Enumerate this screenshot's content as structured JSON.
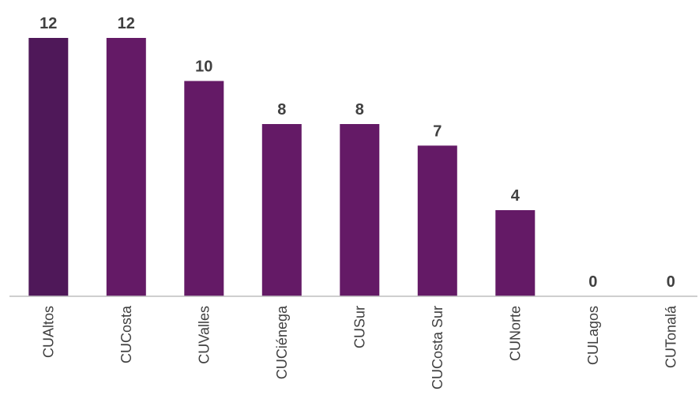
{
  "chart_data": {
    "type": "bar",
    "categories": [
      "CUAltos",
      "CUCosta",
      "CUValles",
      "CUCiénega",
      "CUSur",
      "CUCosta Sur",
      "CUNorte",
      "CULagos",
      "CUTonalá"
    ],
    "values": [
      12,
      12,
      10,
      8,
      8,
      7,
      4,
      0,
      0
    ],
    "title": "",
    "xlabel": "",
    "ylabel": "",
    "ylim": [
      0,
      12
    ],
    "grid": false,
    "legend": "none",
    "data_labels": true,
    "bar_colors": [
      "#4f1859",
      "#641a66",
      "#641a66",
      "#641a66",
      "#641a66",
      "#641a66",
      "#641a66",
      "#641a66",
      "#641a66"
    ],
    "axis_color": "#bfbfbf",
    "label_color": "#404040"
  }
}
